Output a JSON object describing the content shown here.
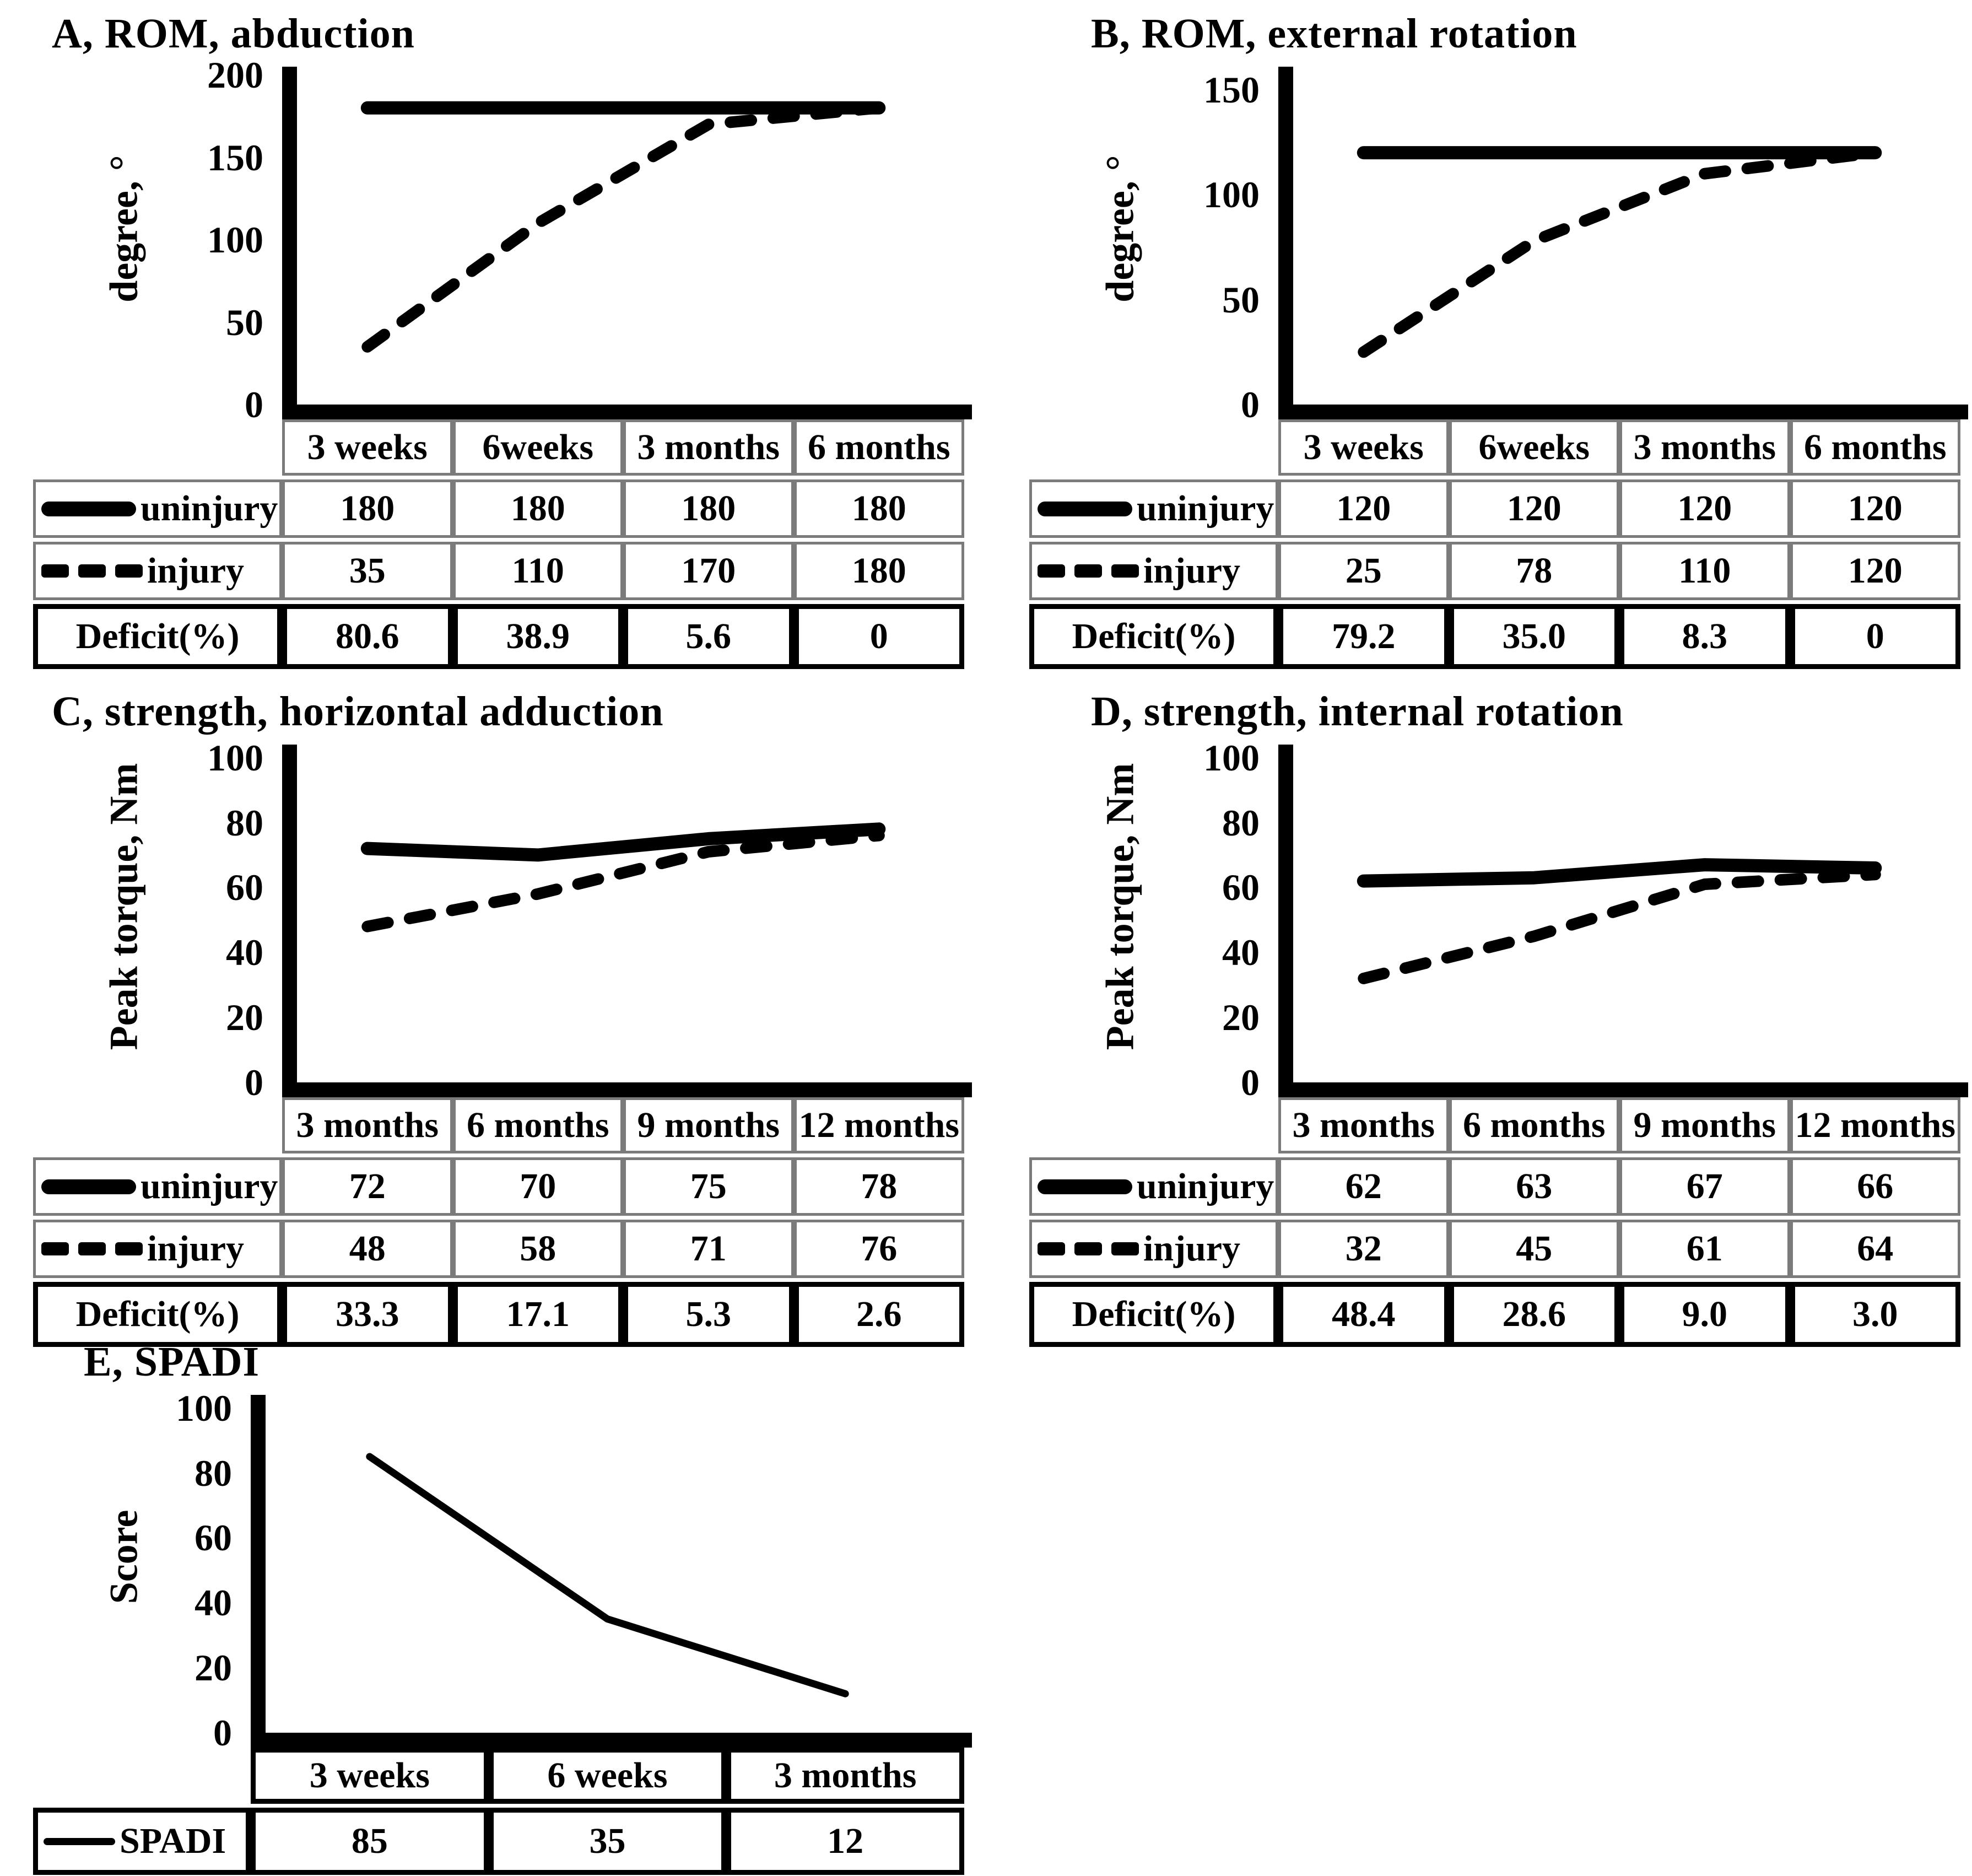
{
  "chart_data": [
    {
      "type": "line",
      "id": "A",
      "title": "A, ROM, abduction",
      "ylabel": "degree, °",
      "xlabel": "",
      "yticks": [
        200,
        150,
        100,
        50,
        0
      ],
      "ylim": [
        0,
        205
      ],
      "grid": false,
      "legend_position": "table-left",
      "categories": [
        "3 weeks",
        "6weeks",
        "3 months",
        "6 months"
      ],
      "series": [
        {
          "name": "uninjury",
          "line_style": "solid-thick",
          "values": [
            180,
            180,
            180,
            180
          ]
        },
        {
          "name": "injury",
          "line_style": "dashed",
          "values": [
            35,
            110,
            170,
            180
          ]
        }
      ],
      "deficit_row": {
        "label": "Deficit(%)",
        "values": [
          "80.6",
          "38.9",
          "5.6",
          "0"
        ]
      }
    },
    {
      "type": "line",
      "id": "B",
      "title": "B, ROM, external rotation",
      "ylabel": "degree, °",
      "xlabel": "",
      "yticks": [
        150,
        100,
        50,
        0
      ],
      "ylim": [
        0,
        161
      ],
      "grid": false,
      "legend_position": "table-left",
      "categories": [
        "3 weeks",
        "6weeks",
        "3 months",
        "6 months"
      ],
      "series": [
        {
          "name": "uninjury",
          "line_style": "solid-thick",
          "values": [
            120,
            120,
            120,
            120
          ]
        },
        {
          "name": "injury",
          "line_style": "dashed",
          "values": [
            25,
            78,
            110,
            120
          ]
        }
      ],
      "deficit_row": {
        "label": "Deficit(%)",
        "values": [
          "79.2",
          "35.0",
          "8.3",
          "0"
        ]
      }
    },
    {
      "type": "line",
      "id": "C",
      "title": "C, strength, horizontal adduction",
      "ylabel": "Peak torque, Nm",
      "xlabel": "",
      "yticks": [
        100,
        80,
        60,
        40,
        20,
        0
      ],
      "ylim": [
        0,
        104
      ],
      "grid": false,
      "legend_position": "table-left",
      "categories": [
        "3 months",
        "6 months",
        "9 months",
        "12 months"
      ],
      "series": [
        {
          "name": "uninjury",
          "line_style": "solid-thick",
          "values": [
            72,
            70,
            75,
            78
          ]
        },
        {
          "name": "injury",
          "line_style": "dashed",
          "values": [
            48,
            58,
            71,
            76
          ]
        }
      ],
      "deficit_row": {
        "label": "Deficit(%)",
        "values": [
          "33.3",
          "17.1",
          "5.3",
          "2.6"
        ]
      }
    },
    {
      "type": "line",
      "id": "D",
      "title": "D, strength, internal rotation",
      "ylabel": "Peak torque, Nm",
      "xlabel": "",
      "yticks": [
        100,
        80,
        60,
        40,
        20,
        0
      ],
      "ylim": [
        0,
        104
      ],
      "grid": false,
      "legend_position": "table-left",
      "categories": [
        "3 months",
        "6 months",
        "9 months",
        "12 months"
      ],
      "series": [
        {
          "name": "uninjury",
          "line_style": "solid-thick",
          "values": [
            62,
            63,
            67,
            66
          ]
        },
        {
          "name": "injury",
          "line_style": "dashed",
          "values": [
            32,
            45,
            61,
            64
          ]
        }
      ],
      "deficit_row": {
        "label": "Deficit(%)",
        "values": [
          "48.4",
          "28.6",
          "9.0",
          "3.0"
        ]
      }
    },
    {
      "type": "line",
      "id": "E",
      "title": "E, SPADI",
      "ylabel": "Score",
      "xlabel": "",
      "yticks": [
        100,
        80,
        60,
        40,
        20,
        0
      ],
      "ylim": [
        0,
        104
      ],
      "grid": false,
      "legend_position": "table-left",
      "categories": [
        "3 weeks",
        "6 weeks",
        "3 months"
      ],
      "series": [
        {
          "name": "SPADI",
          "line_style": "solid-thin",
          "values": [
            85,
            35,
            12
          ]
        }
      ],
      "deficit_row": null
    }
  ]
}
